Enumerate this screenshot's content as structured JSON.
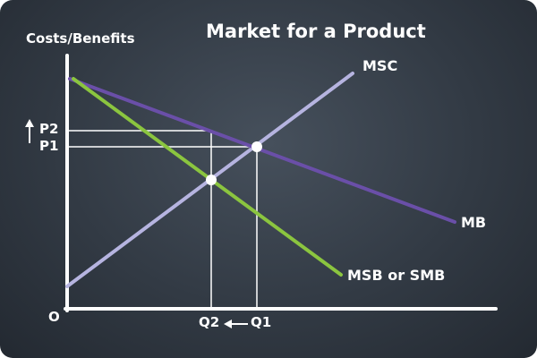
{
  "diagram": {
    "title": "Market for a Product",
    "y_axis_label": "Costs/Benefits",
    "origin_label": "O",
    "curves": {
      "msc": "MSC",
      "mb": "MB",
      "msb": "MSB or SMB"
    },
    "price_labels": {
      "p2": "P2",
      "p1": "P1"
    },
    "quantity_labels": {
      "q2": "Q2",
      "q1": "Q1"
    }
  },
  "colors": {
    "background": "#323a44",
    "msc_line": "#b6b4e0",
    "mb_line": "#6a4fa8",
    "msb_line": "#8bc53f",
    "guide_lines": "#ffffff",
    "text": "#ffffff"
  }
}
